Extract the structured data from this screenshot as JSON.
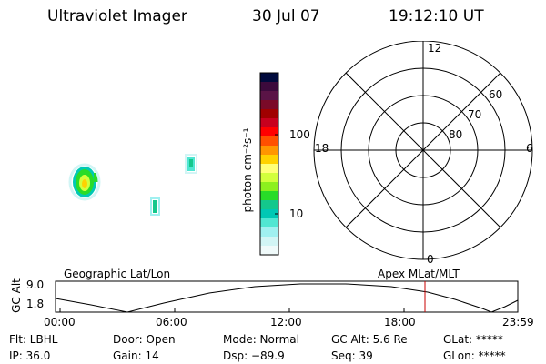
{
  "header": {
    "instrument": "Ultraviolet Imager",
    "date": "30 Jul 07",
    "time": "19:12:10 UT"
  },
  "colorbar": {
    "label": "photon cm⁻²s⁻¹",
    "ticks": [
      "100",
      "10"
    ],
    "colors": [
      "#000a3c",
      "#3c0a3c",
      "#5a1446",
      "#7a0a28",
      "#a00000",
      "#c8001e",
      "#ff0000",
      "#ff5000",
      "#ff9600",
      "#ffd200",
      "#ffff78",
      "#d2ff3c",
      "#8cf01e",
      "#28dc28",
      "#14c88c",
      "#00c8b4",
      "#50e6d2",
      "#a0f0f0",
      "#d2f5f5",
      "#f0fafa"
    ]
  },
  "polar": {
    "labels": {
      "top": "12",
      "bottom": "0",
      "left": "18",
      "right": "6"
    },
    "lat_labels": [
      "60",
      "70",
      "80"
    ]
  },
  "timeline": {
    "left_title": "Geographic Lat/Lon",
    "right_title": "Apex MLat/MLT",
    "axis_label": "GC Alt",
    "y_top": "9.0",
    "y_bottom": "1.8",
    "x_ticks": [
      "00:00",
      "06:00",
      "12:00",
      "18:00",
      "23:59"
    ],
    "marker_color": "#c80000"
  },
  "info": {
    "flt": "Flt: LBHL",
    "ip": "IP: 36.0",
    "door": "Door: Open",
    "gain": "Gain: 14",
    "mode": "Mode: Normal",
    "dsp": "Dsp:  −89.9",
    "gcalt": "GC Alt: 5.6 Re",
    "seq": "Seq: 39",
    "glat": "GLat: *****",
    "glon": "GLon: *****"
  }
}
